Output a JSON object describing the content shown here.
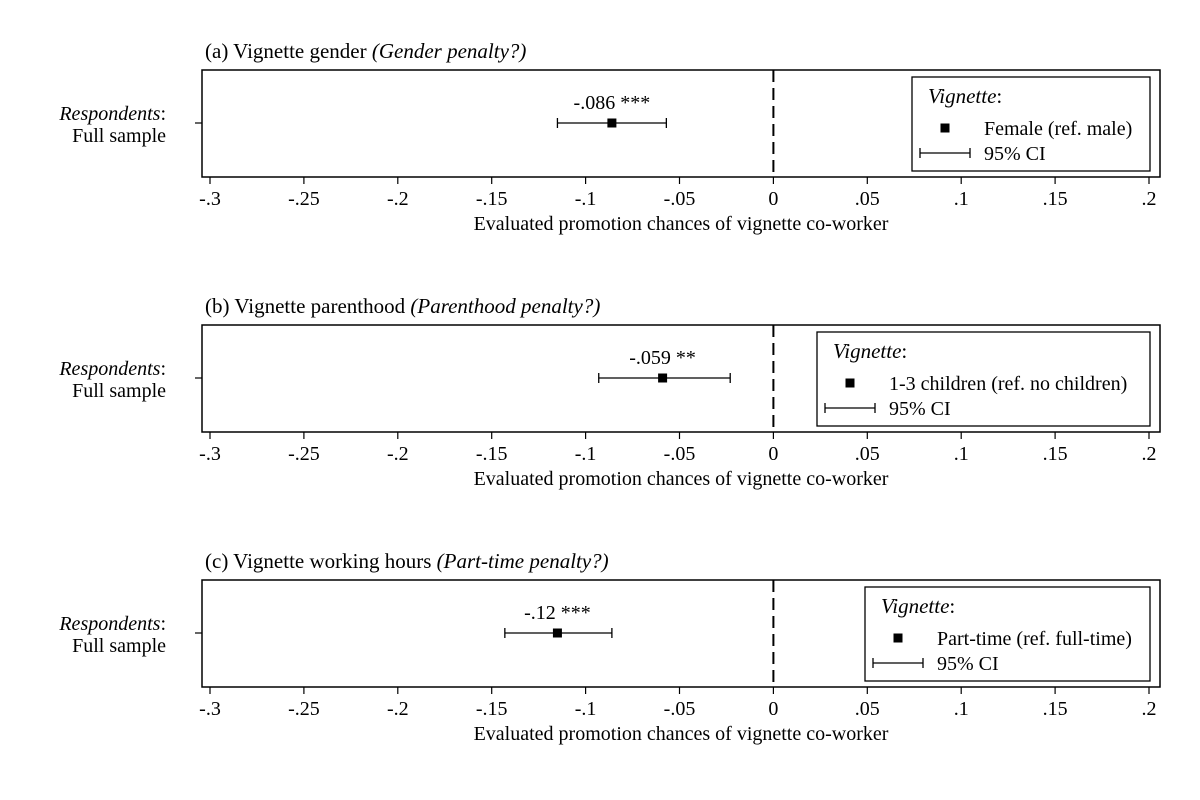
{
  "chart_data": [
    {
      "type": "scatter",
      "panel_label": "(a) Vignette gender",
      "panel_label_italic": "(Gender penalty?)",
      "y_label_italic": "Respondents",
      "y_label_rest": ":",
      "y_label_line2": "Full sample",
      "estimate": -0.086,
      "ci": [
        -0.115,
        -0.057
      ],
      "annotation": "-.086 ***",
      "xlabel": "Evaluated promotion chances of vignette co-worker",
      "xlim": [
        -0.3,
        0.2
      ],
      "xticks": [
        -0.3,
        -0.25,
        -0.2,
        -0.15,
        -0.1,
        -0.05,
        0,
        0.05,
        0.1,
        0.15,
        0.2
      ],
      "xtick_labels": [
        "-.3",
        "-.25",
        "-.2",
        "-.15",
        "-.1",
        "-.05",
        "0",
        ".05",
        ".1",
        ".15",
        ".2"
      ],
      "reference_line": 0,
      "legend": {
        "title": "Vignette",
        "title_suffix": ":",
        "marker_label": "Female (ref. male)",
        "ci_label": "95% CI",
        "position": "top-right"
      }
    },
    {
      "type": "scatter",
      "panel_label": "(b) Vignette parenthood",
      "panel_label_italic": "(Parenthood penalty?)",
      "y_label_italic": "Respondents",
      "y_label_rest": ":",
      "y_label_line2": "Full sample",
      "estimate": -0.059,
      "ci": [
        -0.093,
        -0.023
      ],
      "annotation": "-.059 **",
      "xlabel": "Evaluated promotion chances of vignette co-worker",
      "xlim": [
        -0.3,
        0.2
      ],
      "xticks": [
        -0.3,
        -0.25,
        -0.2,
        -0.15,
        -0.1,
        -0.05,
        0,
        0.05,
        0.1,
        0.15,
        0.2
      ],
      "xtick_labels": [
        "-.3",
        "-.25",
        "-.2",
        "-.15",
        "-.1",
        "-.05",
        "0",
        ".05",
        ".1",
        ".15",
        ".2"
      ],
      "reference_line": 0,
      "legend": {
        "title": "Vignette",
        "title_suffix": ":",
        "marker_label": "1-3 children (ref. no children)",
        "ci_label": "95% CI",
        "position": "top-right"
      }
    },
    {
      "type": "scatter",
      "panel_label": "(c) Vignette working hours",
      "panel_label_italic": "(Part-time penalty?)",
      "y_label_italic": "Respondents",
      "y_label_rest": ":",
      "y_label_line2": "Full sample",
      "estimate": -0.115,
      "ci": [
        -0.143,
        -0.086
      ],
      "annotation": "-.12 ***",
      "xlabel": "Evaluated promotion chances of vignette co-worker",
      "xlim": [
        -0.3,
        0.2
      ],
      "xticks": [
        -0.3,
        -0.25,
        -0.2,
        -0.15,
        -0.1,
        -0.05,
        0,
        0.05,
        0.1,
        0.15,
        0.2
      ],
      "xtick_labels": [
        "-.3",
        "-.25",
        "-.2",
        "-.15",
        "-.1",
        "-.05",
        "0",
        ".05",
        ".1",
        ".15",
        ".2"
      ],
      "reference_line": 0,
      "legend": {
        "title": "Vignette",
        "title_suffix": ":",
        "marker_label": "Part-time (ref. full-time)",
        "ci_label": "95% CI",
        "position": "top-right"
      }
    }
  ]
}
